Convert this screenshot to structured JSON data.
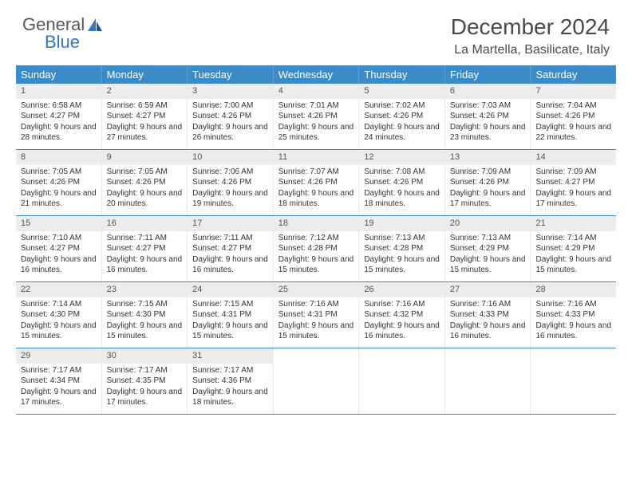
{
  "logo": {
    "text1": "General",
    "text2": "Blue"
  },
  "title": "December 2024",
  "location": "La Martella, Basilicate, Italy",
  "weekdays": [
    "Sunday",
    "Monday",
    "Tuesday",
    "Wednesday",
    "Thursday",
    "Friday",
    "Saturday"
  ],
  "colors": {
    "header_bar": "#3b8bc8",
    "daynum_bg": "#ececec",
    "border": "#3b8bc8",
    "logo_blue": "#2f7ac0",
    "text": "#4a4a4a"
  },
  "weeks": [
    [
      {
        "n": "1",
        "sr": "6:58 AM",
        "ss": "4:27 PM",
        "dl": "9 hours and 28 minutes."
      },
      {
        "n": "2",
        "sr": "6:59 AM",
        "ss": "4:27 PM",
        "dl": "9 hours and 27 minutes."
      },
      {
        "n": "3",
        "sr": "7:00 AM",
        "ss": "4:26 PM",
        "dl": "9 hours and 26 minutes."
      },
      {
        "n": "4",
        "sr": "7:01 AM",
        "ss": "4:26 PM",
        "dl": "9 hours and 25 minutes."
      },
      {
        "n": "5",
        "sr": "7:02 AM",
        "ss": "4:26 PM",
        "dl": "9 hours and 24 minutes."
      },
      {
        "n": "6",
        "sr": "7:03 AM",
        "ss": "4:26 PM",
        "dl": "9 hours and 23 minutes."
      },
      {
        "n": "7",
        "sr": "7:04 AM",
        "ss": "4:26 PM",
        "dl": "9 hours and 22 minutes."
      }
    ],
    [
      {
        "n": "8",
        "sr": "7:05 AM",
        "ss": "4:26 PM",
        "dl": "9 hours and 21 minutes."
      },
      {
        "n": "9",
        "sr": "7:05 AM",
        "ss": "4:26 PM",
        "dl": "9 hours and 20 minutes."
      },
      {
        "n": "10",
        "sr": "7:06 AM",
        "ss": "4:26 PM",
        "dl": "9 hours and 19 minutes."
      },
      {
        "n": "11",
        "sr": "7:07 AM",
        "ss": "4:26 PM",
        "dl": "9 hours and 18 minutes."
      },
      {
        "n": "12",
        "sr": "7:08 AM",
        "ss": "4:26 PM",
        "dl": "9 hours and 18 minutes."
      },
      {
        "n": "13",
        "sr": "7:09 AM",
        "ss": "4:26 PM",
        "dl": "9 hours and 17 minutes."
      },
      {
        "n": "14",
        "sr": "7:09 AM",
        "ss": "4:27 PM",
        "dl": "9 hours and 17 minutes."
      }
    ],
    [
      {
        "n": "15",
        "sr": "7:10 AM",
        "ss": "4:27 PM",
        "dl": "9 hours and 16 minutes."
      },
      {
        "n": "16",
        "sr": "7:11 AM",
        "ss": "4:27 PM",
        "dl": "9 hours and 16 minutes."
      },
      {
        "n": "17",
        "sr": "7:11 AM",
        "ss": "4:27 PM",
        "dl": "9 hours and 16 minutes."
      },
      {
        "n": "18",
        "sr": "7:12 AM",
        "ss": "4:28 PM",
        "dl": "9 hours and 15 minutes."
      },
      {
        "n": "19",
        "sr": "7:13 AM",
        "ss": "4:28 PM",
        "dl": "9 hours and 15 minutes."
      },
      {
        "n": "20",
        "sr": "7:13 AM",
        "ss": "4:29 PM",
        "dl": "9 hours and 15 minutes."
      },
      {
        "n": "21",
        "sr": "7:14 AM",
        "ss": "4:29 PM",
        "dl": "9 hours and 15 minutes."
      }
    ],
    [
      {
        "n": "22",
        "sr": "7:14 AM",
        "ss": "4:30 PM",
        "dl": "9 hours and 15 minutes."
      },
      {
        "n": "23",
        "sr": "7:15 AM",
        "ss": "4:30 PM",
        "dl": "9 hours and 15 minutes."
      },
      {
        "n": "24",
        "sr": "7:15 AM",
        "ss": "4:31 PM",
        "dl": "9 hours and 15 minutes."
      },
      {
        "n": "25",
        "sr": "7:16 AM",
        "ss": "4:31 PM",
        "dl": "9 hours and 15 minutes."
      },
      {
        "n": "26",
        "sr": "7:16 AM",
        "ss": "4:32 PM",
        "dl": "9 hours and 16 minutes."
      },
      {
        "n": "27",
        "sr": "7:16 AM",
        "ss": "4:33 PM",
        "dl": "9 hours and 16 minutes."
      },
      {
        "n": "28",
        "sr": "7:16 AM",
        "ss": "4:33 PM",
        "dl": "9 hours and 16 minutes."
      }
    ],
    [
      {
        "n": "29",
        "sr": "7:17 AM",
        "ss": "4:34 PM",
        "dl": "9 hours and 17 minutes."
      },
      {
        "n": "30",
        "sr": "7:17 AM",
        "ss": "4:35 PM",
        "dl": "9 hours and 17 minutes."
      },
      {
        "n": "31",
        "sr": "7:17 AM",
        "ss": "4:36 PM",
        "dl": "9 hours and 18 minutes."
      },
      null,
      null,
      null,
      null
    ]
  ],
  "labels": {
    "sunrise": "Sunrise:",
    "sunset": "Sunset:",
    "daylight": "Daylight:"
  }
}
